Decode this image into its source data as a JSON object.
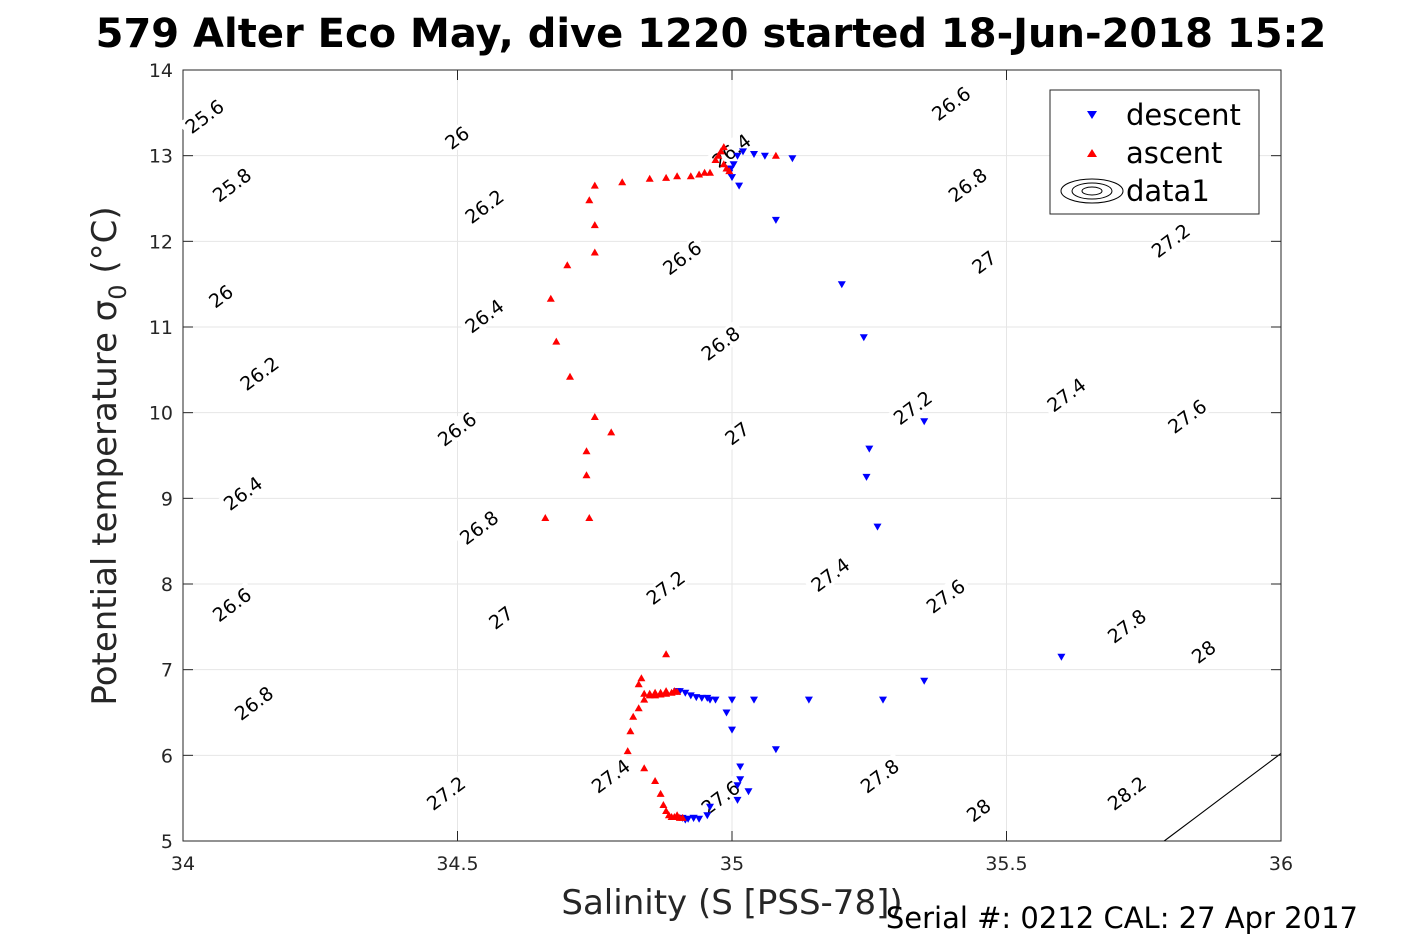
{
  "title": "579 Alter Eco May, dive 1220 started 18-Jun-2018 15:2",
  "footer": "Serial #: 0212  CAL: 27 Apr 2017",
  "colors": {
    "descent": "#0000ff",
    "ascent": "#ff0000",
    "contour": "#000000",
    "grid": "#e6e6e6"
  },
  "chart_data": {
    "type": "scatter",
    "xlabel": "Salinity (S [PSS-78])",
    "ylabel_main": "Potential temperature ",
    "ylabel_symbol": "σ",
    "ylabel_sub": "0",
    "ylabel_unit": " (°C)",
    "xlim": [
      34,
      36
    ],
    "ylim": [
      5,
      14
    ],
    "xticks": [
      "34",
      "34.5",
      "35",
      "35.5",
      "36"
    ],
    "xtick_values": [
      34,
      34.5,
      35,
      35.5,
      36
    ],
    "yticks": [
      "5",
      "6",
      "7",
      "8",
      "9",
      "10",
      "11",
      "12",
      "13",
      "14"
    ],
    "ytick_values": [
      5,
      6,
      7,
      8,
      9,
      10,
      11,
      12,
      13,
      14
    ],
    "grid": true,
    "legend_position": "top-right",
    "legend": [
      "descent",
      "ascent",
      "data1"
    ],
    "contours": {
      "levels": [
        25.6,
        25.8,
        26,
        26.2,
        26.4,
        26.6,
        26.8,
        27,
        27.2,
        27.4,
        27.6,
        27.8,
        28,
        28.2
      ],
      "label_text": [
        "25.6",
        "25.8",
        "26",
        "26.2",
        "26.4",
        "26.6",
        "26.8",
        "27",
        "27.2",
        "27.4",
        "27.6",
        "27.8",
        "28",
        "28.2"
      ],
      "labels": [
        {
          "text": "25.6",
          "x": 34.04,
          "y": 13.45
        },
        {
          "text": "25.8",
          "x": 34.09,
          "y": 12.65
        },
        {
          "text": "26",
          "x": 34.5,
          "y": 13.2
        },
        {
          "text": "26",
          "x": 34.07,
          "y": 11.35
        },
        {
          "text": "26.2",
          "x": 34.55,
          "y": 12.4
        },
        {
          "text": "26.2",
          "x": 34.14,
          "y": 10.45
        },
        {
          "text": "26.4",
          "x": 35.0,
          "y": 13.05
        },
        {
          "text": "26.4",
          "x": 34.55,
          "y": 11.12
        },
        {
          "text": "26.4",
          "x": 34.11,
          "y": 9.05
        },
        {
          "text": "26.6",
          "x": 35.4,
          "y": 13.6
        },
        {
          "text": "26.6",
          "x": 34.91,
          "y": 11.8
        },
        {
          "text": "26.6",
          "x": 34.5,
          "y": 9.8
        },
        {
          "text": "26.6",
          "x": 34.09,
          "y": 7.75
        },
        {
          "text": "26.8",
          "x": 35.43,
          "y": 12.65
        },
        {
          "text": "26.8",
          "x": 34.98,
          "y": 10.8
        },
        {
          "text": "26.8",
          "x": 34.54,
          "y": 8.65
        },
        {
          "text": "26.8",
          "x": 34.13,
          "y": 6.6
        },
        {
          "text": "27",
          "x": 35.46,
          "y": 11.75
        },
        {
          "text": "27",
          "x": 35.01,
          "y": 9.75
        },
        {
          "text": "27",
          "x": 34.58,
          "y": 7.6
        },
        {
          "text": "27.2",
          "x": 35.8,
          "y": 12.0
        },
        {
          "text": "27.2",
          "x": 35.33,
          "y": 10.05
        },
        {
          "text": "27.2",
          "x": 34.88,
          "y": 7.95
        },
        {
          "text": "27.2",
          "x": 34.48,
          "y": 5.55
        },
        {
          "text": "27.4",
          "x": 35.61,
          "y": 10.2
        },
        {
          "text": "27.4",
          "x": 35.18,
          "y": 8.1
        },
        {
          "text": "27.4",
          "x": 34.78,
          "y": 5.75
        },
        {
          "text": "27.6",
          "x": 35.83,
          "y": 9.95
        },
        {
          "text": "27.6",
          "x": 35.39,
          "y": 7.85
        },
        {
          "text": "27.6",
          "x": 34.98,
          "y": 5.5
        },
        {
          "text": "27.8",
          "x": 35.72,
          "y": 7.5
        },
        {
          "text": "27.8",
          "x": 35.27,
          "y": 5.75
        },
        {
          "text": "28",
          "x": 35.86,
          "y": 7.2
        },
        {
          "text": "28",
          "x": 35.45,
          "y": 5.35
        },
        {
          "text": "28.2",
          "x": 35.72,
          "y": 5.55
        }
      ]
    },
    "series": [
      {
        "name": "descent",
        "marker": "triangle-down",
        "color": "#0000ff",
        "x": [
          34.995,
          34.998,
          35.0,
          35.003,
          35.01,
          35.02,
          35.04,
          35.06,
          35.11,
          35.013,
          35.08,
          35.2,
          35.24,
          35.35,
          35.25,
          35.245,
          35.265,
          35.6,
          35.35,
          35.275,
          35.14,
          35.04,
          35.0,
          34.97,
          34.96,
          34.99,
          35.0,
          35.08,
          35.015,
          35.015,
          35.01,
          35.03,
          35.01,
          34.96,
          34.955,
          34.94,
          34.93,
          34.92,
          34.91,
          34.9,
          34.905,
          34.915,
          34.925,
          34.935,
          34.945,
          34.955,
          34.915,
          34.93
        ],
        "y": [
          12.8,
          12.85,
          12.75,
          12.9,
          13.0,
          13.05,
          13.02,
          13.0,
          12.97,
          12.65,
          12.25,
          11.5,
          10.88,
          9.9,
          9.58,
          9.25,
          8.67,
          7.15,
          6.87,
          6.65,
          6.65,
          6.65,
          6.65,
          6.65,
          6.65,
          6.5,
          6.3,
          6.07,
          5.87,
          5.72,
          5.48,
          5.58,
          5.65,
          5.4,
          5.3,
          5.26,
          5.27,
          5.26,
          5.27,
          6.75,
          6.75,
          6.73,
          6.7,
          6.68,
          6.67,
          6.67,
          5.25,
          5.27
        ]
      },
      {
        "name": "ascent",
        "marker": "triangle-up",
        "color": "#ff0000",
        "x": [
          34.985,
          34.98,
          34.975,
          34.97,
          34.985,
          34.99,
          34.995,
          34.96,
          34.95,
          34.94,
          34.925,
          34.9,
          34.88,
          34.85,
          34.8,
          34.75,
          34.74,
          34.75,
          34.75,
          34.7,
          34.67,
          34.68,
          34.705,
          34.75,
          34.78,
          34.735,
          34.735,
          34.66,
          34.74,
          35.08,
          34.88,
          34.895,
          34.88,
          34.87,
          34.86,
          34.85,
          34.84,
          34.835,
          34.83,
          34.84,
          34.83,
          34.82,
          34.815,
          34.81,
          34.84,
          34.86,
          34.87,
          34.875,
          34.88,
          34.885,
          34.89,
          34.895,
          34.9,
          34.905,
          34.91,
          34.85,
          34.86,
          34.87,
          34.88,
          34.89,
          34.9
        ],
        "y": [
          13.1,
          13.05,
          13.0,
          12.95,
          12.9,
          12.85,
          12.82,
          12.8,
          12.8,
          12.78,
          12.76,
          12.76,
          12.74,
          12.73,
          12.69,
          12.65,
          12.48,
          12.19,
          11.87,
          11.72,
          11.33,
          10.83,
          10.42,
          9.95,
          9.77,
          9.55,
          9.27,
          8.77,
          8.77,
          13.0,
          7.18,
          6.75,
          6.75,
          6.73,
          6.73,
          6.72,
          6.72,
          6.9,
          6.83,
          6.65,
          6.55,
          6.45,
          6.28,
          6.05,
          5.85,
          5.7,
          5.55,
          5.42,
          5.35,
          5.3,
          5.28,
          5.28,
          5.3,
          5.27,
          5.27,
          6.7,
          6.7,
          6.71,
          6.72,
          6.73,
          6.74
        ]
      }
    ]
  }
}
